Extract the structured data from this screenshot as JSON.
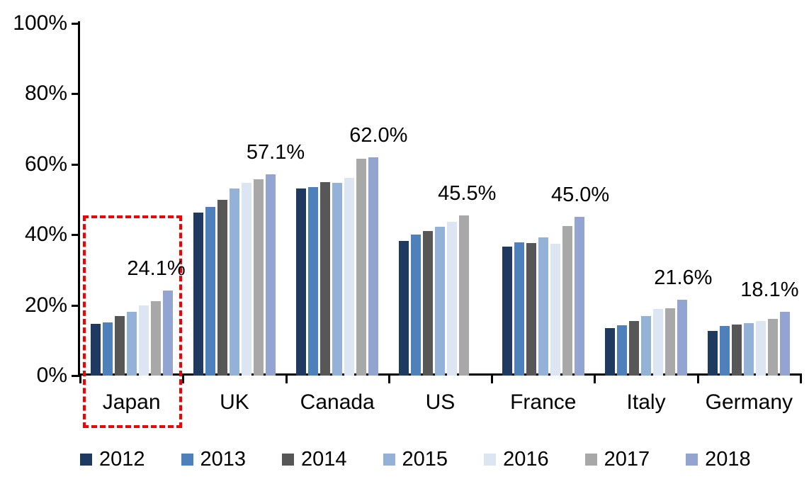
{
  "chart_data": {
    "type": "bar",
    "title": "",
    "xlabel": "",
    "ylabel": "",
    "categories": [
      "Japan",
      "UK",
      "Canada",
      "US",
      "France",
      "Italy",
      "Germany"
    ],
    "series": [
      {
        "name": "2012",
        "color": "#1f3a60",
        "values": [
          14.6,
          46.3,
          53.1,
          38.3,
          36.7,
          13.4,
          12.6
        ]
      },
      {
        "name": "2013",
        "color": "#4e80bc",
        "values": [
          15.1,
          47.8,
          53.5,
          40.0,
          37.8,
          14.3,
          14.1
        ]
      },
      {
        "name": "2014",
        "color": "#575757",
        "values": [
          16.9,
          49.9,
          55.0,
          41.1,
          37.7,
          15.4,
          14.4
        ]
      },
      {
        "name": "2015",
        "color": "#94b2d8",
        "values": [
          18.1,
          53.2,
          54.7,
          42.3,
          39.3,
          17.0,
          14.8
        ]
      },
      {
        "name": "2016",
        "color": "#dce6f2",
        "values": [
          20.0,
          54.8,
          56.2,
          43.7,
          37.4,
          19.0,
          15.4
        ]
      },
      {
        "name": "2017",
        "color": "#a8a8a8",
        "values": [
          21.1,
          55.8,
          61.6,
          45.5,
          42.4,
          19.2,
          16.0
        ]
      },
      {
        "name": "2018",
        "color": "#92a4cf",
        "values": [
          24.1,
          57.1,
          62.0,
          null,
          45.0,
          21.6,
          18.1
        ]
      }
    ],
    "data_labels": [
      "24.1%",
      "57.1%",
      "62.0%",
      "45.5%",
      "45.0%",
      "21.6%",
      "18.1%"
    ],
    "y_ticks": [
      "0%",
      "20%",
      "40%",
      "60%",
      "80%",
      "100%"
    ],
    "ylim": [
      0,
      100
    ],
    "grid": false,
    "legend_position": "bottom",
    "legend_entries": [
      "2012",
      "2013",
      "2014",
      "2015",
      "2016",
      "2017",
      "2018"
    ],
    "annotation_highlight": {
      "category": "Japan",
      "shape": "dashed-rectangle",
      "color": "#f40000"
    },
    "axis_color": "#000000",
    "text_color": "#000000",
    "background_color": "#ffffff"
  }
}
